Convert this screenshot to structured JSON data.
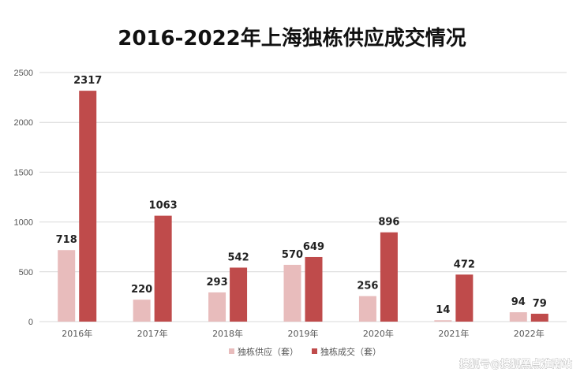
{
  "chart_data": {
    "type": "bar",
    "title": "2016-2022年上海独栋供应成交情况",
    "categories": [
      "2016年",
      "2017年",
      "2018年",
      "2019年",
      "2020年",
      "2021年",
      "2022年"
    ],
    "series": [
      {
        "name": "独栋供应（套）",
        "values": [
          718,
          220,
          293,
          570,
          256,
          14,
          94
        ],
        "color": "#e8bcbc"
      },
      {
        "name": "独栋成交（套）",
        "values": [
          2317,
          1063,
          542,
          649,
          896,
          472,
          79
        ],
        "color": "#bf4b4b"
      }
    ],
    "xlabel": "",
    "ylabel": "",
    "ylim": [
      0,
      2500
    ],
    "yticks": [
      0,
      500,
      1000,
      1500,
      2000,
      2500
    ],
    "grid": true,
    "legend_position": "bottom-center",
    "gridline_color": "#d9d9d9"
  },
  "watermark": "搜狐号@搜狐黑点淮南站"
}
